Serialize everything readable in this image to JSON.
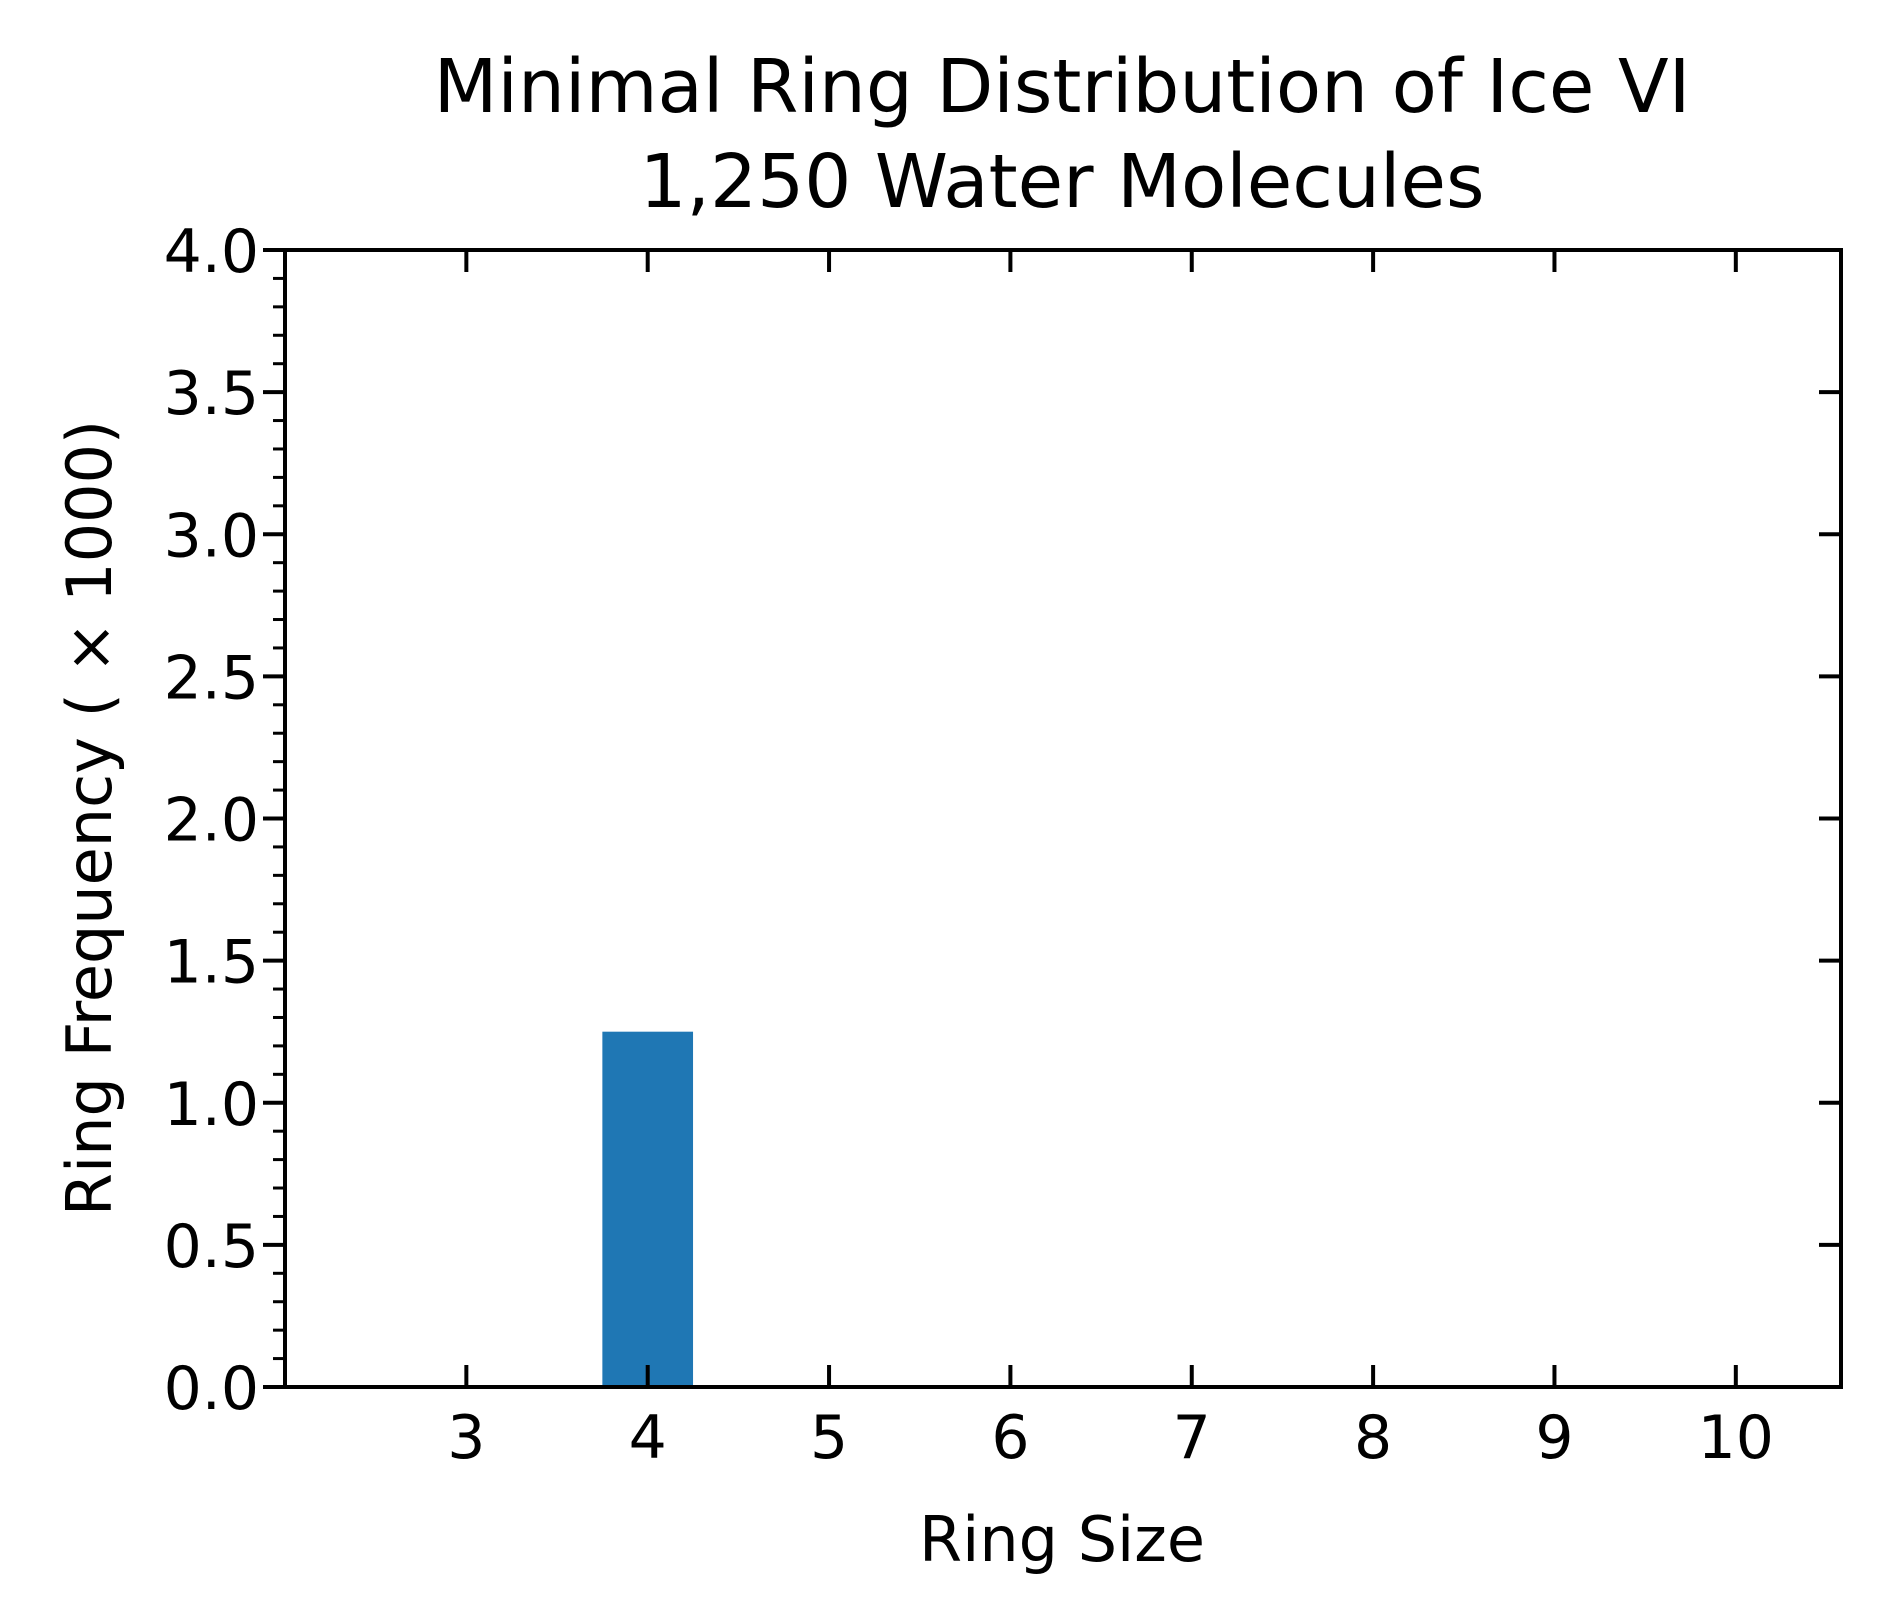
{
  "chart_data": {
    "type": "bar",
    "title": "Minimal Ring Distribution of Ice VI",
    "subtitle": "1,250 Water Molecules",
    "xlabel": "Ring Size",
    "ylabel": "Ring Frequency ( × 1000)",
    "categories": [
      "3",
      "4",
      "5",
      "6",
      "7",
      "8",
      "9",
      "10"
    ],
    "x": [
      3,
      4,
      5,
      6,
      7,
      8,
      9,
      10
    ],
    "values": [
      0,
      1.25,
      0,
      0,
      0,
      0,
      0,
      0
    ],
    "xlim": [
      2,
      10.58
    ],
    "ylim": [
      0,
      4.0
    ],
    "y_ticks": [
      "0.0",
      "0.5",
      "1.0",
      "1.5",
      "2.0",
      "2.5",
      "3.0",
      "3.5",
      "4.0"
    ],
    "y_tick_values": [
      0,
      0.5,
      1.0,
      1.5,
      2.0,
      2.5,
      3.0,
      3.5,
      4.0
    ],
    "grid": false,
    "legend": "none",
    "bar_color": "#1f77b4",
    "bar_width": 0.5
  }
}
